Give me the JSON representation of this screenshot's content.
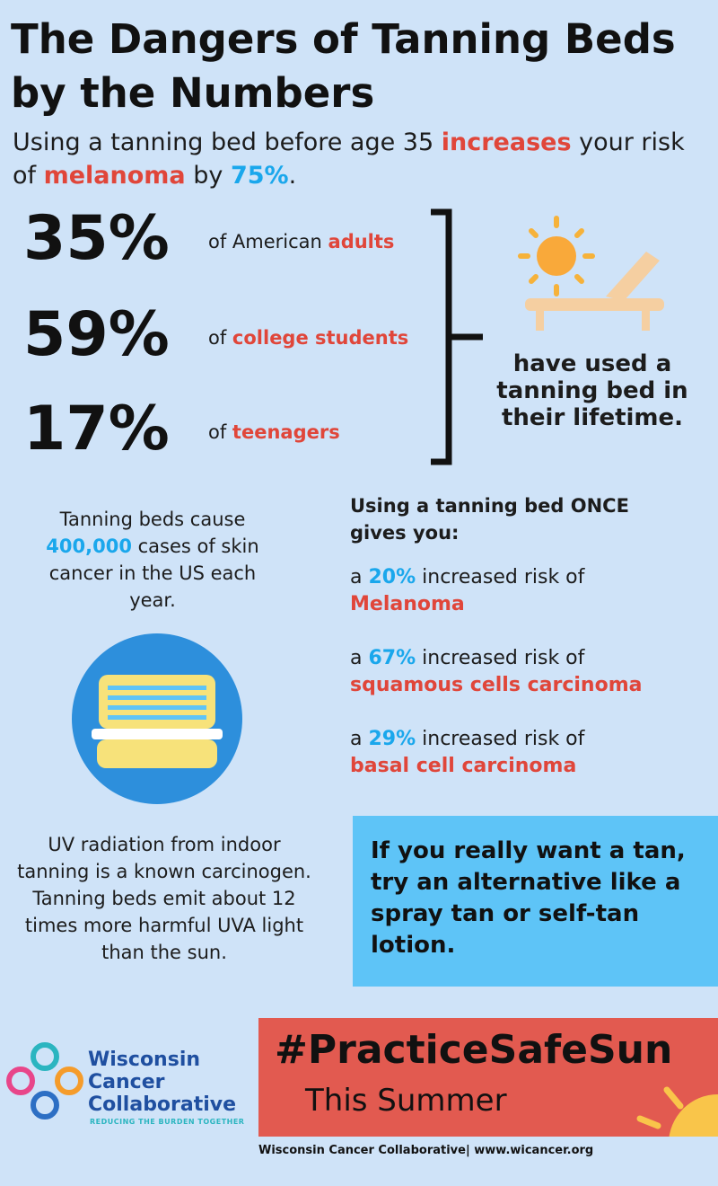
{
  "title": "The Dangers of Tanning Beds by the Numbers",
  "intro": [
    "Using a tanning bed before age 35 ",
    "increases",
    " your risk of ",
    "melanoma",
    " by ",
    "75%",
    "."
  ],
  "stats": [
    {
      "percent": "35%",
      "prefix": "of American ",
      "group": "adults"
    },
    {
      "percent": "59%",
      "prefix": "of ",
      "group": "college students"
    },
    {
      "percent": "17%",
      "prefix": "of ",
      "group": "teenagers"
    }
  ],
  "bracket_text": "have used a tanning bed in their lifetime.",
  "cases": [
    "Tanning beds cause ",
    "400,000",
    " cases of skin cancer in the US each year."
  ],
  "once": {
    "heading": "Using a tanning bed ONCE gives you:",
    "items": [
      {
        "pre": "a ",
        "percent": "20%",
        "post": " increased risk of",
        "disease": "Melanoma"
      },
      {
        "pre": "a ",
        "percent": "67%",
        "post": " increased risk of",
        "disease": "squamous cells carcinoma"
      },
      {
        "pre": "a ",
        "percent": "29%",
        "post": " increased risk of",
        "disease": "basal cell carcinoma"
      }
    ]
  },
  "uv": "UV radiation from indoor tanning is a known carcinogen. Tanning beds emit about 12 times more harmful UVA light than the sun.",
  "alternative": "If you really want a tan, try an alternative like a spray tan or self-tan lotion.",
  "logo": {
    "name": [
      "Wisconsin",
      "Cancer",
      "Collaborative"
    ],
    "tagline": "REDUCING THE BURDEN TOGETHER"
  },
  "hashtag": "#PracticeSafeSun",
  "subline": "This Summer",
  "footer": "Wisconsin Cancer Collaborative| www.wicancer.org"
}
